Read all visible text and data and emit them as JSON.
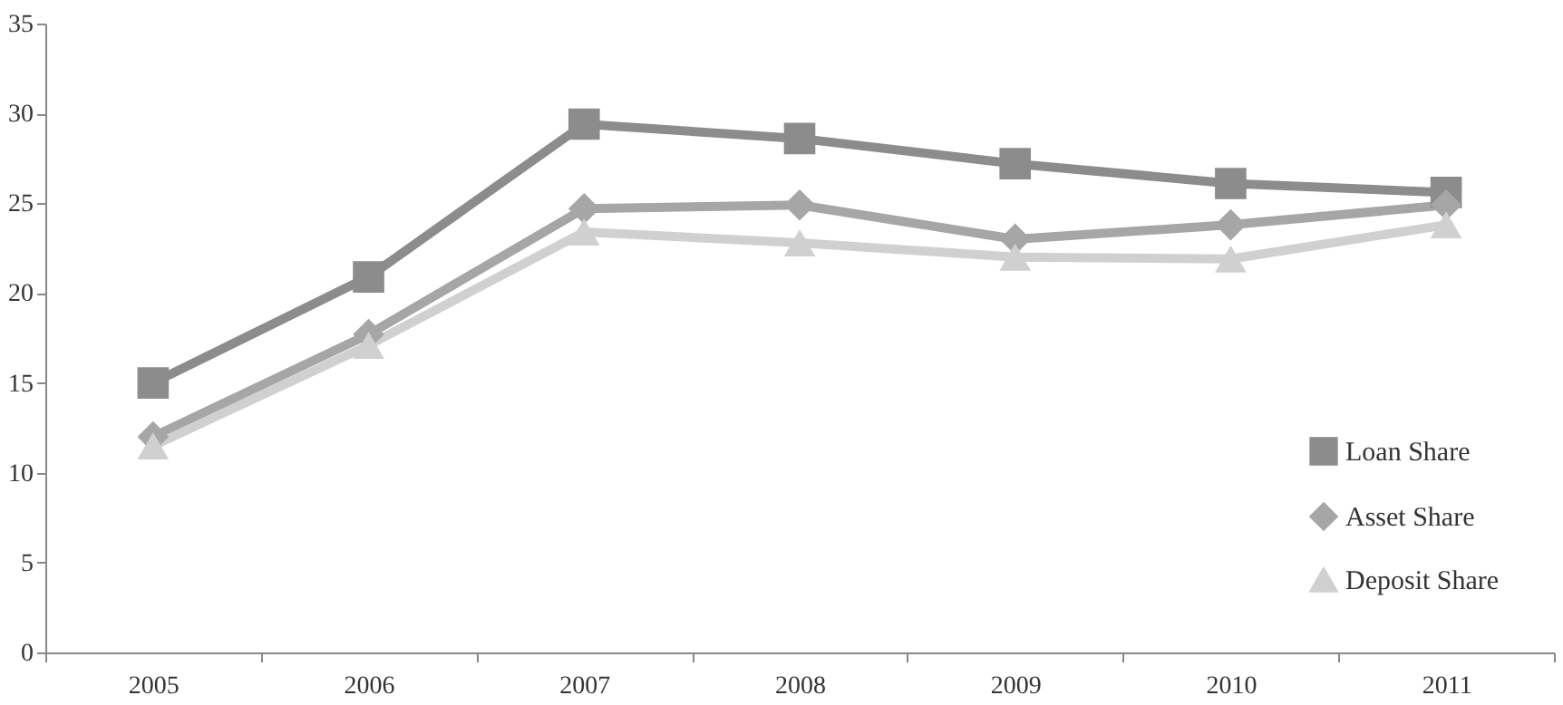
{
  "chart_data": {
    "type": "line",
    "categories": [
      "2005",
      "2006",
      "2007",
      "2008",
      "2009",
      "2010",
      "2011"
    ],
    "series": [
      {
        "name": "Loan Share",
        "color": "#8c8c8c",
        "marker": "square",
        "values": [
          15.0,
          20.9,
          29.4,
          28.6,
          27.2,
          26.1,
          25.6
        ]
      },
      {
        "name": "Asset Share",
        "color": "#a6a6a6",
        "marker": "diamond",
        "values": [
          12.0,
          17.7,
          24.7,
          24.9,
          23.0,
          23.8,
          24.9
        ]
      },
      {
        "name": "Deposit Share",
        "color": "#d0d0d0",
        "marker": "triangle",
        "values": [
          11.5,
          17.1,
          23.4,
          22.8,
          22.0,
          21.9,
          23.8
        ]
      }
    ],
    "ylim": [
      0,
      35
    ],
    "yticks": [
      0,
      5,
      10,
      15,
      20,
      25,
      30,
      35
    ],
    "grid": false,
    "legend": "bottom right",
    "line_style": "solid"
  }
}
